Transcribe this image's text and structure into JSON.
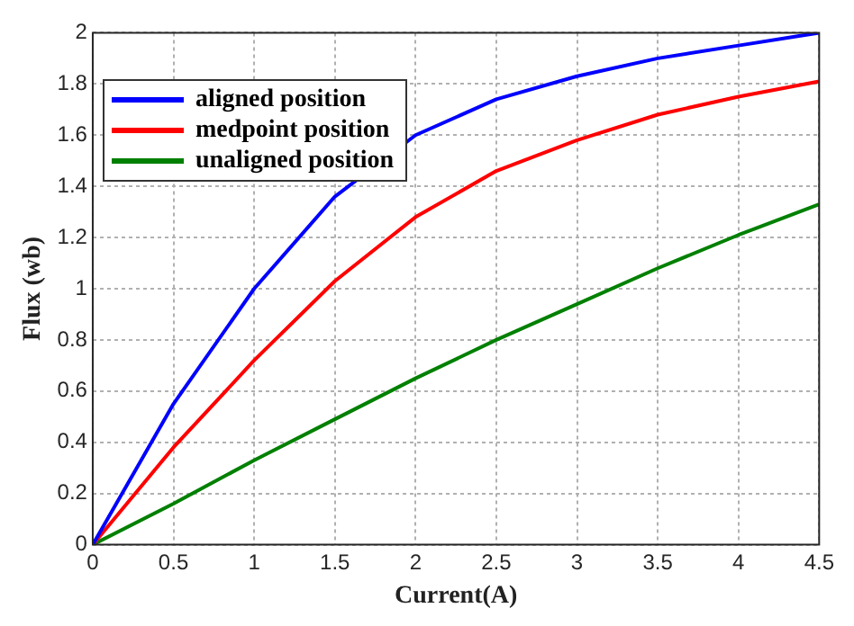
{
  "chart_data": {
    "type": "line",
    "xlabel": "Current(A)",
    "ylabel": "Flux (wb)",
    "x": [
      0,
      0.5,
      1,
      1.5,
      2,
      2.5,
      3,
      3.5,
      4,
      4.5
    ],
    "series": [
      {
        "name": "aligned position",
        "color": "#0000ff",
        "values": [
          0,
          0.55,
          1.0,
          1.36,
          1.6,
          1.74,
          1.83,
          1.9,
          1.95,
          2.0
        ]
      },
      {
        "name": "medpoint position",
        "color": "#ff0000",
        "values": [
          0,
          0.38,
          0.72,
          1.03,
          1.28,
          1.46,
          1.58,
          1.68,
          1.75,
          1.81
        ]
      },
      {
        "name": "unaligned position",
        "color": "#008000",
        "values": [
          0,
          0.16,
          0.33,
          0.49,
          0.65,
          0.8,
          0.94,
          1.08,
          1.21,
          1.33
        ]
      }
    ],
    "xlim": [
      0,
      4.5
    ],
    "xticks": [
      0,
      0.5,
      1,
      1.5,
      2,
      2.5,
      3,
      3.5,
      4,
      4.5
    ],
    "ylim": [
      0,
      2
    ],
    "yticks": [
      0,
      0.2,
      0.4,
      0.6,
      0.8,
      1,
      1.2,
      1.4,
      1.6,
      1.8,
      2
    ],
    "grid": true,
    "legend": "top left",
    "marker": "none",
    "line_style": "solid"
  }
}
